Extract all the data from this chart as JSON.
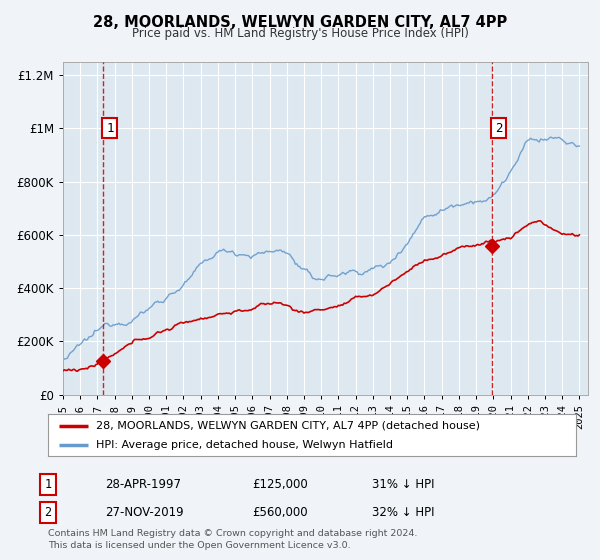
{
  "title": "28, MOORLANDS, WELWYN GARDEN CITY, AL7 4PP",
  "subtitle": "Price paid vs. HM Land Registry's House Price Index (HPI)",
  "bg_color": "#f0f4f8",
  "plot_bg_color": "#dde8f0",
  "grid_color": "#ffffff",
  "red_color": "#cc0000",
  "blue_color": "#6699cc",
  "ylim": [
    0,
    1250000
  ],
  "xlim_start": 1995.0,
  "xlim_end": 2025.5,
  "yticks": [
    0,
    200000,
    400000,
    600000,
    800000,
    1000000,
    1200000
  ],
  "ytick_labels": [
    "£0",
    "£200K",
    "£400K",
    "£600K",
    "£800K",
    "£1M",
    "£1.2M"
  ],
  "marker1_x": 1997.33,
  "marker1_y": 125000,
  "marker2_x": 2019.9,
  "marker2_y": 560000,
  "marker1_date": "28-APR-1997",
  "marker1_price": "£125,000",
  "marker1_hpi": "31% ↓ HPI",
  "marker2_date": "27-NOV-2019",
  "marker2_price": "£560,000",
  "marker2_hpi": "32% ↓ HPI",
  "legend_line1": "28, MOORLANDS, WELWYN GARDEN CITY, AL7 4PP (detached house)",
  "legend_line2": "HPI: Average price, detached house, Welwyn Hatfield",
  "footer1": "Contains HM Land Registry data © Crown copyright and database right 2024.",
  "footer2": "This data is licensed under the Open Government Licence v3.0."
}
